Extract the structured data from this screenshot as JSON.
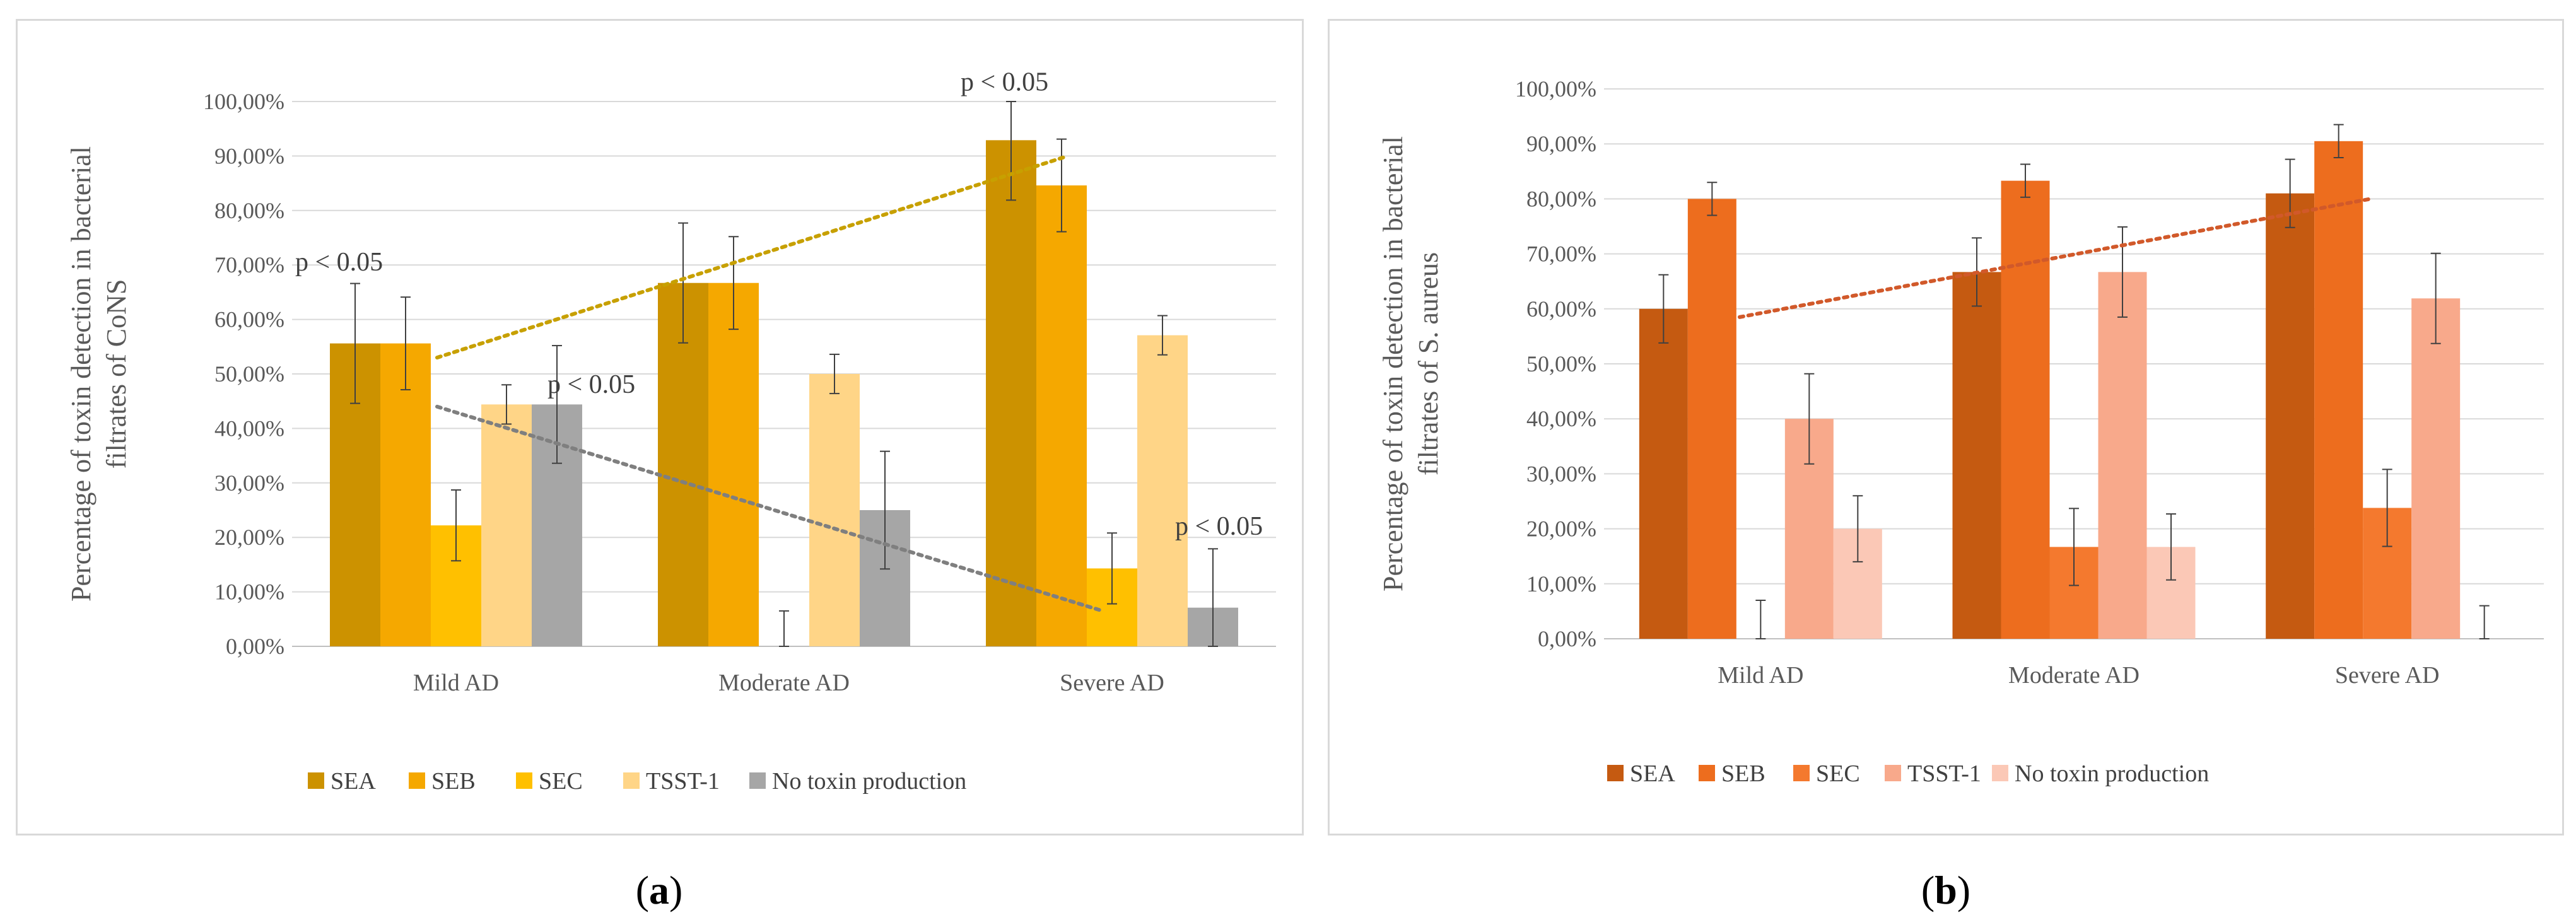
{
  "charts": {
    "a": {
      "caption_letter": "a",
      "chart_data": {
        "type": "bar",
        "title": "",
        "xlabel": "",
        "ylabel": "Percentage of toxin detection in bacterial filtrates of CoNS",
        "ylabel_line1": "Percentage of toxin detection in bacterial",
        "ylabel_line2": "filtrates of CoNS",
        "ylim": [
          0,
          100
        ],
        "yticks": [
          0,
          10,
          20,
          30,
          40,
          50,
          60,
          70,
          80,
          90,
          100
        ],
        "ytick_labels": [
          "0,00%",
          "10,00%",
          "20,00%",
          "30,00%",
          "40,00%",
          "50,00%",
          "60,00%",
          "70,00%",
          "80,00%",
          "90,00%",
          "100,00%"
        ],
        "categories": [
          "Mild AD",
          "Moderate AD",
          "Severe AD"
        ],
        "series": [
          {
            "name": "SEA",
            "color": "#cc9200",
            "values": [
              55.6,
              66.7,
              92.9
            ],
            "errors": [
              11,
              11,
              11
            ]
          },
          {
            "name": "SEB",
            "color": "#f5a800",
            "values": [
              55.6,
              66.7,
              84.6
            ],
            "errors": [
              8.5,
              8.5,
              8.5
            ]
          },
          {
            "name": "SEC",
            "color": "#ffc000",
            "values": [
              22.2,
              0,
              14.3
            ],
            "errors": [
              6.5,
              6.5,
              6.5
            ]
          },
          {
            "name": "TSST-1",
            "color": "#ffd587",
            "values": [
              44.4,
              50.0,
              57.1
            ],
            "errors": [
              3.6,
              3.6,
              3.6
            ]
          },
          {
            "name": "No toxin production",
            "color": "#a6a6a6",
            "values": [
              44.4,
              25.0,
              7.1
            ],
            "errors": [
              10.8,
              10.8,
              10.8
            ]
          }
        ],
        "trendlines": [
          {
            "series": "SEA",
            "color": "#c7a000"
          },
          {
            "series": "No toxin production",
            "color": "#7f7f7f"
          }
        ],
        "annotations": [
          "p < 0.05",
          "p < 0.05",
          "p < 0.05",
          "p < 0.05"
        ],
        "legend": "bottom"
      }
    },
    "b": {
      "caption_letter": "b",
      "chart_data": {
        "type": "bar",
        "title": "",
        "xlabel": "",
        "ylabel": "Percentage of toxin detection in bacterial filtrates of S. aureus",
        "ylabel_line1": "Percentage of toxin detection in bacterial",
        "ylabel_line2": "filtrates of S. aureus",
        "ylim": [
          0,
          100
        ],
        "yticks": [
          0,
          10,
          20,
          30,
          40,
          50,
          60,
          70,
          80,
          90,
          100
        ],
        "ytick_labels": [
          "0,00%",
          "10,00%",
          "20,00%",
          "30,00%",
          "40,00%",
          "50,00%",
          "60,00%",
          "70,00%",
          "80,00%",
          "90,00%",
          "100,00%"
        ],
        "categories": [
          "Mild AD",
          "Moderate AD",
          "Severe AD"
        ],
        "series": [
          {
            "name": "SEA",
            "color": "#c55a11",
            "values": [
              60.0,
              66.7,
              81.0
            ],
            "errors": [
              6.2,
              6.2,
              6.2
            ]
          },
          {
            "name": "SEB",
            "color": "#ed6d1e",
            "values": [
              80.0,
              83.3,
              90.5
            ],
            "errors": [
              3,
              3,
              3
            ]
          },
          {
            "name": "SEC",
            "color": "#f4792e",
            "values": [
              0,
              16.7,
              23.8
            ],
            "errors": [
              7,
              7,
              7
            ]
          },
          {
            "name": "TSST-1",
            "color": "#f8a98b",
            "values": [
              40.0,
              66.7,
              61.9
            ],
            "errors": [
              8.2,
              8.2,
              8.2
            ]
          },
          {
            "name": "No toxin production",
            "color": "#fbc8b6",
            "values": [
              20.0,
              16.7,
              0
            ],
            "errors": [
              6,
              6,
              6
            ]
          }
        ],
        "trendlines": [
          {
            "series": "SEA",
            "color": "#d1592a"
          }
        ],
        "annotations": [],
        "legend": "bottom"
      }
    }
  }
}
